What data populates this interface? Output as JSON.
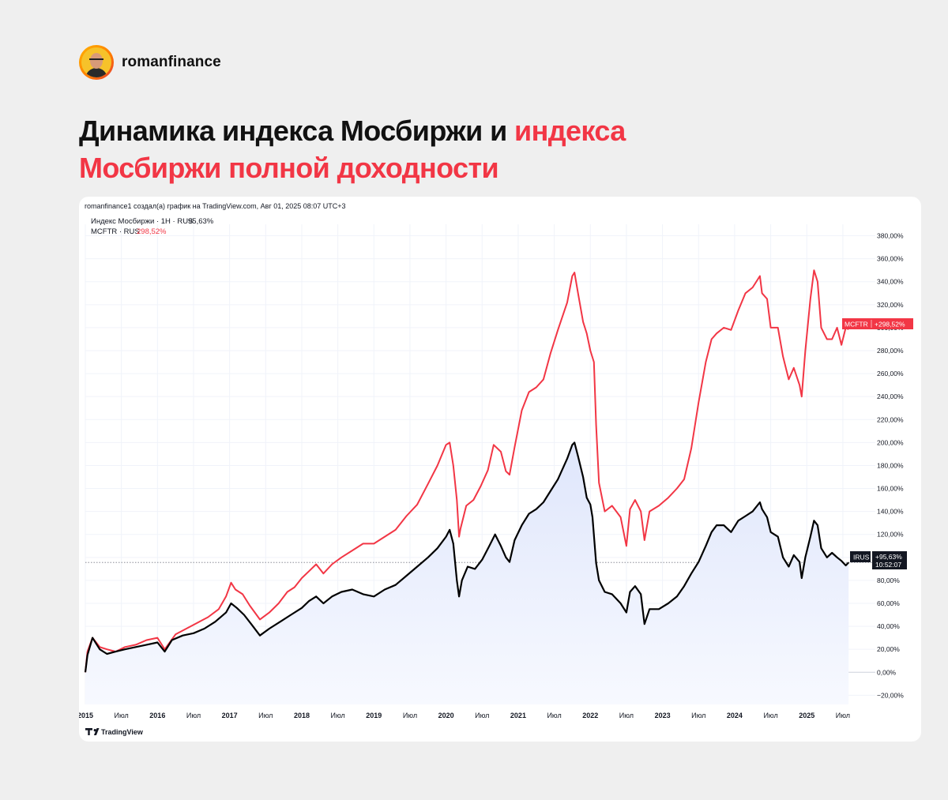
{
  "brand": {
    "name": "romanfinance"
  },
  "headline": {
    "part1": "Динамика индекса Мосбиржи и ",
    "part2": "индекса",
    "part3": "Мосбиржи полной доходности"
  },
  "chart_header": {
    "source": "romanfinance1 создал(а) график на TradingView.com, Авг 01, 2025 08:07 UTC+3"
  },
  "legend": {
    "imoex_label": "Индекс Мосбиржи · 1Н · RUS",
    "imoex_value": "95,63%",
    "mcftr_label": "MCFTR · RUS",
    "mcftr_value": "298,52%"
  },
  "badges": {
    "mcftr_name": "MCFTR",
    "mcftr_value": "+298,52%",
    "imoex_name": "IRUS",
    "imoex_value": "+95,63%",
    "imoex_time": "10:52:07"
  },
  "footer": {
    "logo_text": "TradingView"
  },
  "colors": {
    "red": "#f23645",
    "black": "#000000",
    "area_top": "#dfe6fb",
    "area_bottom": "#f7f9ff",
    "axis_text": "#131722",
    "grid": "#f0f3fa"
  },
  "chart_data": {
    "type": "line",
    "title": "",
    "xlabel": "",
    "ylabel": "",
    "ylim": [
      -28,
      390
    ],
    "xlim": [
      2015.0,
      2025.95
    ],
    "y_ticks": [
      -20,
      0,
      20,
      40,
      60,
      80,
      100,
      120,
      140,
      160,
      180,
      200,
      220,
      240,
      260,
      280,
      300,
      320,
      340,
      360,
      380
    ],
    "y_tick_labels": [
      "−20,00%",
      "0,00%",
      "20,00%",
      "40,00%",
      "60,00%",
      "80,00%",
      "100,00%",
      "120,00%",
      "140,00%",
      "160,00%",
      "180,00%",
      "200,00%",
      "220,00%",
      "240,00%",
      "260,00%",
      "280,00%",
      "300,00%",
      "320,00%",
      "340,00%",
      "360,00%",
      "380,00%"
    ],
    "x_ticks": [
      {
        "x": 2015.0,
        "label": "2015",
        "bold": true
      },
      {
        "x": 2015.5,
        "label": "Июл",
        "bold": false
      },
      {
        "x": 2016.0,
        "label": "2016",
        "bold": true
      },
      {
        "x": 2016.5,
        "label": "Июл",
        "bold": false
      },
      {
        "x": 2017.0,
        "label": "2017",
        "bold": true
      },
      {
        "x": 2017.5,
        "label": "Июл",
        "bold": false
      },
      {
        "x": 2018.0,
        "label": "2018",
        "bold": true
      },
      {
        "x": 2018.5,
        "label": "Июл",
        "bold": false
      },
      {
        "x": 2019.0,
        "label": "2019",
        "bold": true
      },
      {
        "x": 2019.5,
        "label": "Июл",
        "bold": false
      },
      {
        "x": 2020.0,
        "label": "2020",
        "bold": true
      },
      {
        "x": 2020.5,
        "label": "Июл",
        "bold": false
      },
      {
        "x": 2021.0,
        "label": "2021",
        "bold": true
      },
      {
        "x": 2021.5,
        "label": "Июл",
        "bold": false
      },
      {
        "x": 2022.0,
        "label": "2022",
        "bold": true
      },
      {
        "x": 2022.5,
        "label": "Июл",
        "bold": false
      },
      {
        "x": 2023.0,
        "label": "2023",
        "bold": true
      },
      {
        "x": 2023.5,
        "label": "Июл",
        "bold": false
      },
      {
        "x": 2024.0,
        "label": "2024",
        "bold": true
      },
      {
        "x": 2024.5,
        "label": "Июл",
        "bold": false
      },
      {
        "x": 2025.0,
        "label": "2025",
        "bold": true
      },
      {
        "x": 2025.5,
        "label": "Июл",
        "bold": false
      }
    ],
    "current_line": 95.63,
    "series": [
      {
        "name": "MCFTR",
        "color": "#f23645",
        "points": [
          [
            2015.0,
            0
          ],
          [
            2015.03,
            18
          ],
          [
            2015.1,
            30
          ],
          [
            2015.2,
            22
          ],
          [
            2015.3,
            20
          ],
          [
            2015.42,
            18
          ],
          [
            2015.55,
            22
          ],
          [
            2015.7,
            24
          ],
          [
            2015.85,
            28
          ],
          [
            2016.0,
            30
          ],
          [
            2016.1,
            20
          ],
          [
            2016.25,
            33
          ],
          [
            2016.4,
            38
          ],
          [
            2016.55,
            43
          ],
          [
            2016.7,
            48
          ],
          [
            2016.85,
            55
          ],
          [
            2016.95,
            66
          ],
          [
            2017.02,
            78
          ],
          [
            2017.08,
            72
          ],
          [
            2017.18,
            68
          ],
          [
            2017.28,
            58
          ],
          [
            2017.42,
            46
          ],
          [
            2017.55,
            52
          ],
          [
            2017.68,
            60
          ],
          [
            2017.8,
            70
          ],
          [
            2017.9,
            74
          ],
          [
            2018.0,
            82
          ],
          [
            2018.1,
            88
          ],
          [
            2018.2,
            94
          ],
          [
            2018.3,
            86
          ],
          [
            2018.42,
            94
          ],
          [
            2018.55,
            100
          ],
          [
            2018.7,
            106
          ],
          [
            2018.85,
            112
          ],
          [
            2019.0,
            112
          ],
          [
            2019.15,
            118
          ],
          [
            2019.3,
            124
          ],
          [
            2019.45,
            136
          ],
          [
            2019.6,
            146
          ],
          [
            2019.75,
            164
          ],
          [
            2019.88,
            180
          ],
          [
            2020.0,
            198
          ],
          [
            2020.05,
            200
          ],
          [
            2020.1,
            180
          ],
          [
            2020.15,
            150
          ],
          [
            2020.18,
            118
          ],
          [
            2020.2,
            125
          ],
          [
            2020.28,
            145
          ],
          [
            2020.38,
            150
          ],
          [
            2020.48,
            162
          ],
          [
            2020.58,
            176
          ],
          [
            2020.66,
            198
          ],
          [
            2020.76,
            192
          ],
          [
            2020.83,
            175
          ],
          [
            2020.88,
            172
          ],
          [
            2020.95,
            196
          ],
          [
            2021.05,
            228
          ],
          [
            2021.15,
            244
          ],
          [
            2021.25,
            248
          ],
          [
            2021.35,
            255
          ],
          [
            2021.45,
            278
          ],
          [
            2021.55,
            298
          ],
          [
            2021.68,
            322
          ],
          [
            2021.75,
            345
          ],
          [
            2021.78,
            348
          ],
          [
            2021.83,
            330
          ],
          [
            2021.9,
            305
          ],
          [
            2021.95,
            295
          ],
          [
            2022.0,
            280
          ],
          [
            2022.05,
            270
          ],
          [
            2022.08,
            215
          ],
          [
            2022.12,
            165
          ],
          [
            2022.2,
            140
          ],
          [
            2022.3,
            145
          ],
          [
            2022.42,
            135
          ],
          [
            2022.5,
            110
          ],
          [
            2022.55,
            142
          ],
          [
            2022.62,
            150
          ],
          [
            2022.7,
            140
          ],
          [
            2022.75,
            115
          ],
          [
            2022.82,
            140
          ],
          [
            2022.95,
            145
          ],
          [
            2023.08,
            152
          ],
          [
            2023.2,
            160
          ],
          [
            2023.3,
            168
          ],
          [
            2023.4,
            195
          ],
          [
            2023.5,
            235
          ],
          [
            2023.6,
            270
          ],
          [
            2023.68,
            290
          ],
          [
            2023.75,
            295
          ],
          [
            2023.85,
            300
          ],
          [
            2023.95,
            298
          ],
          [
            2024.05,
            315
          ],
          [
            2024.15,
            330
          ],
          [
            2024.25,
            335
          ],
          [
            2024.35,
            345
          ],
          [
            2024.38,
            330
          ],
          [
            2024.45,
            325
          ],
          [
            2024.5,
            300
          ],
          [
            2024.6,
            300
          ],
          [
            2024.67,
            275
          ],
          [
            2024.75,
            255
          ],
          [
            2024.82,
            265
          ],
          [
            2024.9,
            250
          ],
          [
            2024.93,
            240
          ],
          [
            2024.98,
            280
          ],
          [
            2025.05,
            325
          ],
          [
            2025.1,
            350
          ],
          [
            2025.15,
            340
          ],
          [
            2025.2,
            300
          ],
          [
            2025.28,
            290
          ],
          [
            2025.35,
            290
          ],
          [
            2025.42,
            300
          ],
          [
            2025.48,
            285
          ],
          [
            2025.54,
            300
          ],
          [
            2025.58,
            298.5
          ]
        ]
      },
      {
        "name": "IRUS",
        "color": "#000000",
        "points": [
          [
            2015.0,
            0
          ],
          [
            2015.03,
            15
          ],
          [
            2015.1,
            30
          ],
          [
            2015.15,
            25
          ],
          [
            2015.2,
            20
          ],
          [
            2015.3,
            16
          ],
          [
            2015.42,
            18
          ],
          [
            2015.55,
            20
          ],
          [
            2015.7,
            22
          ],
          [
            2015.85,
            24
          ],
          [
            2016.0,
            26
          ],
          [
            2016.1,
            18
          ],
          [
            2016.2,
            28
          ],
          [
            2016.35,
            32
          ],
          [
            2016.5,
            34
          ],
          [
            2016.65,
            38
          ],
          [
            2016.8,
            44
          ],
          [
            2016.95,
            52
          ],
          [
            2017.02,
            60
          ],
          [
            2017.1,
            56
          ],
          [
            2017.2,
            50
          ],
          [
            2017.3,
            42
          ],
          [
            2017.42,
            32
          ],
          [
            2017.55,
            38
          ],
          [
            2017.7,
            44
          ],
          [
            2017.85,
            50
          ],
          [
            2018.0,
            56
          ],
          [
            2018.1,
            62
          ],
          [
            2018.2,
            66
          ],
          [
            2018.3,
            60
          ],
          [
            2018.42,
            66
          ],
          [
            2018.55,
            70
          ],
          [
            2018.7,
            72
          ],
          [
            2018.85,
            68
          ],
          [
            2019.0,
            66
          ],
          [
            2019.15,
            72
          ],
          [
            2019.3,
            76
          ],
          [
            2019.45,
            84
          ],
          [
            2019.6,
            92
          ],
          [
            2019.75,
            100
          ],
          [
            2019.88,
            108
          ],
          [
            2020.0,
            118
          ],
          [
            2020.05,
            124
          ],
          [
            2020.1,
            112
          ],
          [
            2020.15,
            80
          ],
          [
            2020.18,
            66
          ],
          [
            2020.22,
            80
          ],
          [
            2020.3,
            92
          ],
          [
            2020.4,
            90
          ],
          [
            2020.5,
            98
          ],
          [
            2020.6,
            110
          ],
          [
            2020.68,
            120
          ],
          [
            2020.76,
            110
          ],
          [
            2020.83,
            100
          ],
          [
            2020.88,
            96
          ],
          [
            2020.95,
            115
          ],
          [
            2021.05,
            128
          ],
          [
            2021.15,
            138
          ],
          [
            2021.25,
            142
          ],
          [
            2021.35,
            148
          ],
          [
            2021.45,
            158
          ],
          [
            2021.55,
            168
          ],
          [
            2021.68,
            186
          ],
          [
            2021.75,
            198
          ],
          [
            2021.78,
            200
          ],
          [
            2021.83,
            188
          ],
          [
            2021.9,
            170
          ],
          [
            2021.95,
            152
          ],
          [
            2022.0,
            146
          ],
          [
            2022.03,
            135
          ],
          [
            2022.08,
            95
          ],
          [
            2022.12,
            80
          ],
          [
            2022.2,
            70
          ],
          [
            2022.3,
            68
          ],
          [
            2022.42,
            60
          ],
          [
            2022.5,
            52
          ],
          [
            2022.55,
            70
          ],
          [
            2022.62,
            75
          ],
          [
            2022.7,
            68
          ],
          [
            2022.75,
            42
          ],
          [
            2022.82,
            55
          ],
          [
            2022.95,
            55
          ],
          [
            2023.08,
            60
          ],
          [
            2023.2,
            66
          ],
          [
            2023.3,
            75
          ],
          [
            2023.4,
            86
          ],
          [
            2023.5,
            96
          ],
          [
            2023.6,
            110
          ],
          [
            2023.68,
            122
          ],
          [
            2023.75,
            128
          ],
          [
            2023.85,
            128
          ],
          [
            2023.95,
            122
          ],
          [
            2024.05,
            132
          ],
          [
            2024.15,
            136
          ],
          [
            2024.25,
            140
          ],
          [
            2024.35,
            148
          ],
          [
            2024.38,
            142
          ],
          [
            2024.45,
            135
          ],
          [
            2024.5,
            122
          ],
          [
            2024.6,
            118
          ],
          [
            2024.67,
            100
          ],
          [
            2024.75,
            92
          ],
          [
            2024.82,
            102
          ],
          [
            2024.9,
            96
          ],
          [
            2024.93,
            82
          ],
          [
            2024.98,
            100
          ],
          [
            2025.05,
            118
          ],
          [
            2025.1,
            132
          ],
          [
            2025.15,
            128
          ],
          [
            2025.2,
            108
          ],
          [
            2025.28,
            100
          ],
          [
            2025.35,
            104
          ],
          [
            2025.42,
            100
          ],
          [
            2025.48,
            97
          ],
          [
            2025.54,
            93
          ],
          [
            2025.58,
            95.63
          ]
        ]
      }
    ]
  }
}
